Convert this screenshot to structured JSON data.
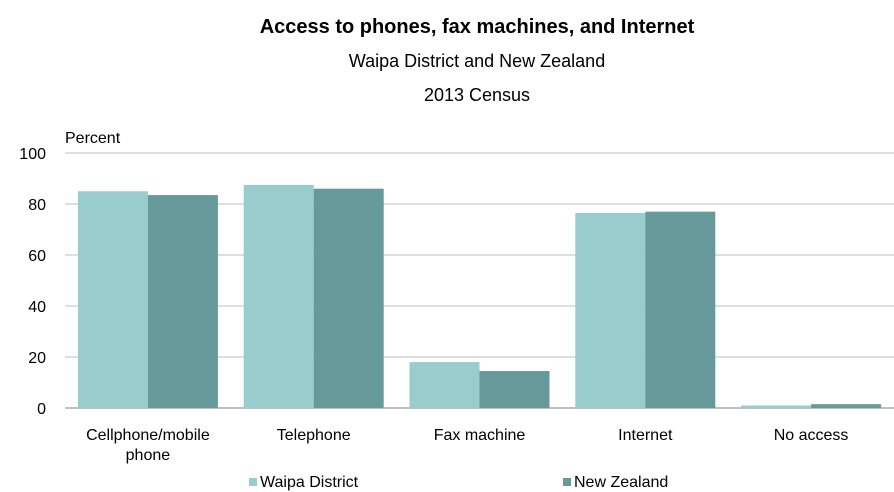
{
  "chart_data": {
    "type": "bar",
    "title": "Access to phones, fax machines, and Internet",
    "subtitle": "Waipa District and New Zealand",
    "subtitle2": "2013 Census",
    "ylabel": "Percent",
    "xlabel": "",
    "ylim": [
      0,
      100
    ],
    "yticks": [
      0,
      20,
      40,
      60,
      80,
      100
    ],
    "grid": true,
    "legend_position": "bottom",
    "categories": [
      [
        "Cellphone/mobile",
        "phone"
      ],
      [
        "Telephone"
      ],
      [
        "Fax machine"
      ],
      [
        "Internet"
      ],
      [
        "No access"
      ]
    ],
    "series": [
      {
        "name": "Waipa District",
        "color": "#99cccc",
        "values": [
          85,
          87.5,
          18,
          76.5,
          1
        ]
      },
      {
        "name": "New Zealand",
        "color": "#669999",
        "values": [
          83.5,
          86,
          14.5,
          77,
          1.5
        ]
      }
    ]
  }
}
